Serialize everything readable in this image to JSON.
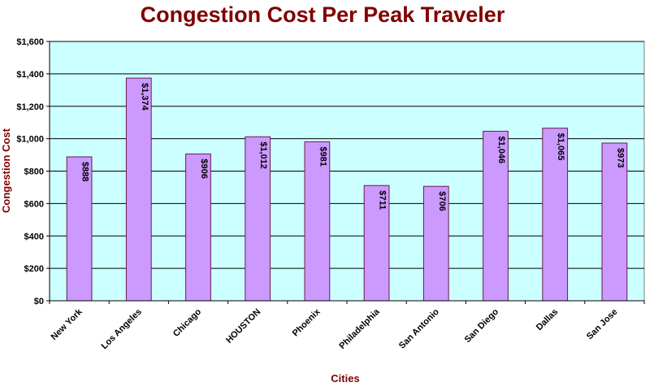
{
  "chart_data": {
    "type": "bar",
    "title": "Congestion Cost Per Peak Traveler",
    "xlabel": "Cities",
    "ylabel": "Congestion Cost",
    "categories": [
      "New York",
      "Los Angeles",
      "Chicago",
      "HOUSTON",
      "Phoenix",
      "Philadelphia",
      "San Antonio",
      "San Diego",
      "Dallas",
      "San Jose"
    ],
    "values": [
      888,
      1374,
      906,
      1012,
      981,
      711,
      706,
      1046,
      1065,
      973
    ],
    "value_labels": [
      "$888",
      "$1,374",
      "$906",
      "$1,012",
      "$981",
      "$711",
      "$706",
      "$1,046",
      "$1,065",
      "$973"
    ],
    "ylim": [
      0,
      1600
    ],
    "yticks": [
      0,
      200,
      400,
      600,
      800,
      1000,
      1200,
      1400,
      1600
    ],
    "ytick_labels": [
      "$0",
      "$200",
      "$400",
      "$600",
      "$800",
      "$1,000",
      "$1,200",
      "$1,400",
      "$1,600"
    ],
    "grid": true,
    "legend": "none",
    "colors": {
      "plot_background": "#ccffff",
      "bar_fill": "#cc99ff",
      "bar_stroke": "#6a1b4d",
      "gridline": "#000000",
      "title": "#800000"
    }
  }
}
